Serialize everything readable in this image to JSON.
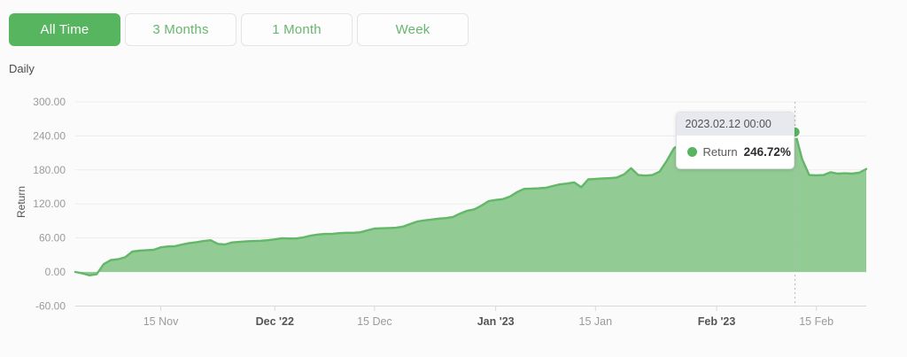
{
  "toolbar": {
    "buttons": [
      {
        "label": "All Time",
        "active": true
      },
      {
        "label": "3 Months",
        "active": false
      },
      {
        "label": "1 Month",
        "active": false
      },
      {
        "label": "Week",
        "active": false
      }
    ]
  },
  "frequency_label": "Daily",
  "colors": {
    "accent_green": "#57b560",
    "line_green": "#63b768",
    "area_green": "#92cb93",
    "gridline": "#ececec",
    "axis_line": "#d9d9d9",
    "tick_label": "#9b9b9b",
    "bold_tick_label": "#555555",
    "tooltip_header_bg": "#e8e9ee",
    "background": "#fbfbfb"
  },
  "tooltip": {
    "date": "2023.02.12 00:00",
    "series": "Return",
    "value": "246.72%"
  },
  "chart_data": {
    "type": "area",
    "title": "",
    "xlabel": "",
    "ylabel": "Return",
    "ylim": [
      -60,
      300
    ],
    "x_range": [
      "2022-11-03",
      "2023-02-22"
    ],
    "grid": "horizontal",
    "legend": "none",
    "y_ticks": [
      {
        "value": 300,
        "label": "300.00"
      },
      {
        "value": 240,
        "label": "240.00"
      },
      {
        "value": 180,
        "label": "180.00"
      },
      {
        "value": 120,
        "label": "120.00"
      },
      {
        "value": 60,
        "label": "60.00"
      },
      {
        "value": 0,
        "label": "0.00"
      },
      {
        "value": -60,
        "label": "-60.00"
      }
    ],
    "x_ticks": [
      {
        "date": "2022-11-15",
        "label": "15 Nov",
        "bold": false
      },
      {
        "date": "2022-12-01",
        "label": "Dec '22",
        "bold": true
      },
      {
        "date": "2022-12-15",
        "label": "15 Dec",
        "bold": false
      },
      {
        "date": "2023-01-01",
        "label": "Jan '23",
        "bold": true
      },
      {
        "date": "2023-01-15",
        "label": "15 Jan",
        "bold": false
      },
      {
        "date": "2023-02-01",
        "label": "Feb '23",
        "bold": true
      },
      {
        "date": "2023-02-15",
        "label": "15 Feb",
        "bold": false
      }
    ],
    "highlight": {
      "date": "2023-02-12",
      "value": 246.72
    },
    "series": [
      {
        "name": "Return",
        "unit": "%",
        "color": "#63b768",
        "fill": "#92cb93",
        "points": [
          [
            "2022-11-03",
            0
          ],
          [
            "2022-11-04",
            -2.5
          ],
          [
            "2022-11-05",
            -6
          ],
          [
            "2022-11-06",
            -4
          ],
          [
            "2022-11-07",
            14
          ],
          [
            "2022-11-08",
            21
          ],
          [
            "2022-11-09",
            22.5
          ],
          [
            "2022-11-10",
            26
          ],
          [
            "2022-11-11",
            36
          ],
          [
            "2022-11-12",
            37.5
          ],
          [
            "2022-11-13",
            38.5
          ],
          [
            "2022-11-14",
            39
          ],
          [
            "2022-11-15",
            43.5
          ],
          [
            "2022-11-16",
            45
          ],
          [
            "2022-11-17",
            45.5
          ],
          [
            "2022-11-18",
            48.5
          ],
          [
            "2022-11-19",
            51
          ],
          [
            "2022-11-20",
            52.5
          ],
          [
            "2022-11-21",
            54.5
          ],
          [
            "2022-11-22",
            56
          ],
          [
            "2022-11-23",
            49.5
          ],
          [
            "2022-11-24",
            48.5
          ],
          [
            "2022-11-25",
            52
          ],
          [
            "2022-11-26",
            53
          ],
          [
            "2022-11-27",
            54
          ],
          [
            "2022-11-28",
            54.5
          ],
          [
            "2022-11-29",
            55
          ],
          [
            "2022-11-30",
            56
          ],
          [
            "2022-12-01",
            57.5
          ],
          [
            "2022-12-02",
            59.5
          ],
          [
            "2022-12-03",
            59
          ],
          [
            "2022-12-04",
            59
          ],
          [
            "2022-12-05",
            61
          ],
          [
            "2022-12-06",
            64
          ],
          [
            "2022-12-07",
            66
          ],
          [
            "2022-12-08",
            67
          ],
          [
            "2022-12-09",
            67
          ],
          [
            "2022-12-10",
            68.5
          ],
          [
            "2022-12-11",
            69
          ],
          [
            "2022-12-12",
            69
          ],
          [
            "2022-12-13",
            70
          ],
          [
            "2022-12-14",
            73.5
          ],
          [
            "2022-12-15",
            76.5
          ],
          [
            "2022-12-16",
            77
          ],
          [
            "2022-12-17",
            77.5
          ],
          [
            "2022-12-18",
            78
          ],
          [
            "2022-12-19",
            80
          ],
          [
            "2022-12-20",
            84.5
          ],
          [
            "2022-12-21",
            89
          ],
          [
            "2022-12-22",
            91
          ],
          [
            "2022-12-23",
            92.5
          ],
          [
            "2022-12-24",
            94
          ],
          [
            "2022-12-25",
            95
          ],
          [
            "2022-12-26",
            97
          ],
          [
            "2022-12-27",
            103
          ],
          [
            "2022-12-28",
            108
          ],
          [
            "2022-12-29",
            110.5
          ],
          [
            "2022-12-30",
            117
          ],
          [
            "2022-12-31",
            125
          ],
          [
            "2023-01-01",
            127
          ],
          [
            "2023-01-02",
            128.5
          ],
          [
            "2023-01-03",
            133
          ],
          [
            "2023-01-04",
            141
          ],
          [
            "2023-01-05",
            146.5
          ],
          [
            "2023-01-06",
            147
          ],
          [
            "2023-01-07",
            147.5
          ],
          [
            "2023-01-08",
            148.5
          ],
          [
            "2023-01-09",
            151.5
          ],
          [
            "2023-01-10",
            154.5
          ],
          [
            "2023-01-11",
            156
          ],
          [
            "2023-01-12",
            158
          ],
          [
            "2023-01-13",
            149.5
          ],
          [
            "2023-01-14",
            163.5
          ],
          [
            "2023-01-15",
            164
          ],
          [
            "2023-01-16",
            165
          ],
          [
            "2023-01-17",
            165.5
          ],
          [
            "2023-01-18",
            166.5
          ],
          [
            "2023-01-19",
            172
          ],
          [
            "2023-01-20",
            183
          ],
          [
            "2023-01-21",
            171
          ],
          [
            "2023-01-22",
            170
          ],
          [
            "2023-01-23",
            171
          ],
          [
            "2023-01-24",
            177
          ],
          [
            "2023-01-25",
            196
          ],
          [
            "2023-01-26",
            218
          ],
          [
            "2023-01-27",
            226
          ],
          [
            "2023-01-28",
            230
          ],
          [
            "2023-01-29",
            227
          ],
          [
            "2023-01-30",
            228.5
          ],
          [
            "2023-01-31",
            231
          ],
          [
            "2023-02-01",
            233
          ],
          [
            "2023-02-02",
            234
          ],
          [
            "2023-02-03",
            236
          ],
          [
            "2023-02-04",
            237.5
          ],
          [
            "2023-02-05",
            239
          ],
          [
            "2023-02-06",
            240
          ],
          [
            "2023-02-07",
            241
          ],
          [
            "2023-02-08",
            242
          ],
          [
            "2023-02-09",
            243
          ],
          [
            "2023-02-10",
            244
          ],
          [
            "2023-02-11",
            245
          ],
          [
            "2023-02-12",
            246.72
          ],
          [
            "2023-02-13",
            199
          ],
          [
            "2023-02-14",
            171
          ],
          [
            "2023-02-15",
            170.5
          ],
          [
            "2023-02-16",
            171
          ],
          [
            "2023-02-17",
            176
          ],
          [
            "2023-02-18",
            173.5
          ],
          [
            "2023-02-19",
            174
          ],
          [
            "2023-02-20",
            173.5
          ],
          [
            "2023-02-21",
            175
          ],
          [
            "2023-02-22",
            181.5
          ]
        ]
      }
    ]
  }
}
